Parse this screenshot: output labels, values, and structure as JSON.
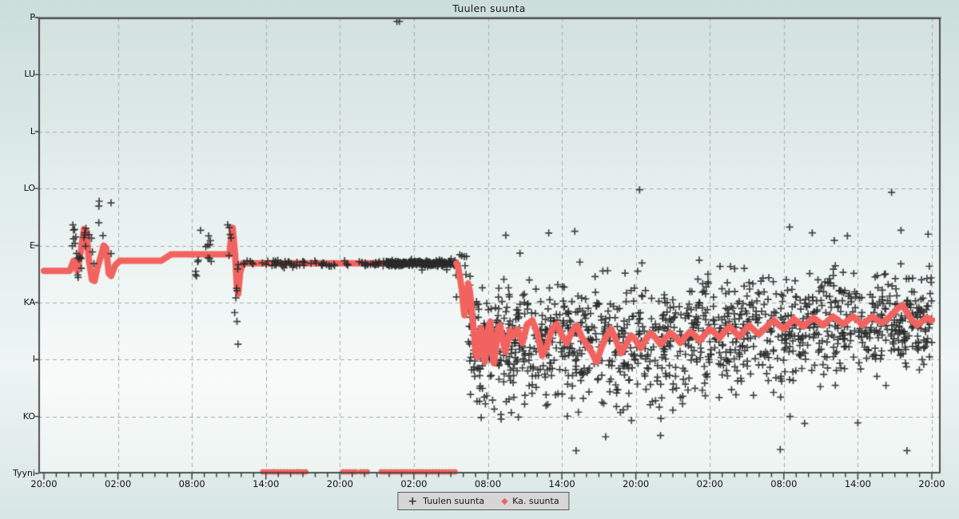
{
  "title": "Tuulen suunta",
  "colors": {
    "avg_line": "#f2635f",
    "scatter_marker": "#2e2e2e",
    "grid": "#a5aead",
    "border": "#4f4f4f",
    "legend_bg": "#d6d6d6",
    "text": "#111111"
  },
  "legend": {
    "items": [
      {
        "marker": "plus",
        "label": "Tuulen suunta"
      },
      {
        "marker": "diamond",
        "label": "Ka. suunta"
      }
    ]
  },
  "chart_data": {
    "type": "scatter",
    "title": "Tuulen suunta",
    "x_axis": {
      "unit": "time of day",
      "span_hours": 72,
      "major_tick_interval_hours": 6,
      "minor_tick_interval_hours": 1,
      "tick_labels": [
        "20:00",
        "02:00",
        "08:00",
        "14:00",
        "20:00",
        "02:00",
        "08:00",
        "14:00",
        "20:00",
        "02:00",
        "08:00",
        "14:00",
        "20:00"
      ]
    },
    "y_axis": {
      "unit": "wind direction (compass, degrees)",
      "tick_labels": [
        "P",
        "LU",
        "L",
        "LO",
        "E",
        "KA",
        "I",
        "KO",
        "Tyyni"
      ],
      "tick_degrees": [
        360,
        315,
        270,
        225,
        180,
        135,
        90,
        45,
        0
      ],
      "grid": true
    },
    "seed": 12,
    "series": [
      {
        "name": "Ka. suunta",
        "type": "line",
        "points": [
          [
            0,
            160
          ],
          [
            2.1,
            160
          ],
          [
            2.4,
            168
          ],
          [
            2.7,
            160
          ],
          [
            3.0,
            176
          ],
          [
            3.25,
            193
          ],
          [
            3.45,
            191
          ],
          [
            3.65,
            168
          ],
          [
            3.9,
            153
          ],
          [
            4.1,
            152
          ],
          [
            4.35,
            163
          ],
          [
            4.6,
            171
          ],
          [
            4.85,
            180
          ],
          [
            5.05,
            178
          ],
          [
            5.25,
            158
          ],
          [
            5.45,
            156
          ],
          [
            5.75,
            164
          ],
          [
            6.15,
            168
          ],
          [
            9.5,
            168
          ],
          [
            10.3,
            173
          ],
          [
            15.05,
            173
          ],
          [
            15.2,
            189
          ],
          [
            15.3,
            194
          ],
          [
            15.5,
            173
          ],
          [
            15.65,
            147
          ],
          [
            15.75,
            142
          ],
          [
            15.9,
            158
          ],
          [
            16.1,
            166
          ],
          [
            33.45,
            166
          ],
          [
            33.6,
            162
          ],
          [
            33.75,
            154
          ],
          [
            33.9,
            144
          ],
          [
            34.0,
            133
          ],
          [
            34.1,
            125
          ],
          [
            34.25,
            138
          ],
          [
            34.4,
            150
          ],
          [
            34.55,
            143
          ],
          [
            34.7,
            128
          ],
          [
            34.85,
            113
          ],
          [
            35.0,
            95
          ],
          [
            35.15,
            92
          ],
          [
            35.3,
            105
          ],
          [
            35.45,
            115
          ],
          [
            35.6,
            98
          ],
          [
            35.75,
            88
          ],
          [
            35.9,
            101
          ],
          [
            36.05,
            116
          ],
          [
            36.2,
            120
          ],
          [
            36.35,
            95
          ],
          [
            36.5,
            87
          ],
          [
            36.65,
            99
          ],
          [
            36.8,
            112
          ],
          [
            37.0,
            117
          ],
          [
            37.2,
            106
          ],
          [
            37.4,
            96
          ],
          [
            37.6,
            104
          ],
          [
            37.8,
            113
          ],
          [
            38.0,
            108
          ],
          [
            38.4,
            114
          ],
          [
            38.8,
            103
          ],
          [
            39.2,
            118
          ],
          [
            39.6,
            121
          ],
          [
            40.0,
            111
          ],
          [
            40.4,
            93
          ],
          [
            40.8,
            101
          ],
          [
            41.2,
            114
          ],
          [
            41.6,
            118
          ],
          [
            42.0,
            109
          ],
          [
            42.4,
            103
          ],
          [
            42.8,
            112
          ],
          [
            43.2,
            117
          ],
          [
            43.6,
            108
          ],
          [
            44.0,
            102
          ],
          [
            44.4,
            96
          ],
          [
            44.8,
            88
          ],
          [
            45.2,
            99
          ],
          [
            45.6,
            108
          ],
          [
            46.0,
            114
          ],
          [
            46.4,
            105
          ],
          [
            46.8,
            95
          ],
          [
            47.2,
            102
          ],
          [
            47.6,
            109
          ],
          [
            48.0,
            105
          ],
          [
            48.4,
            99
          ],
          [
            48.8,
            106
          ],
          [
            49.2,
            111
          ],
          [
            49.6,
            107
          ],
          [
            50.0,
            102
          ],
          [
            50.4,
            107
          ],
          [
            50.8,
            111
          ],
          [
            51.2,
            108
          ],
          [
            51.6,
            103
          ],
          [
            52.0,
            108
          ],
          [
            52.4,
            112
          ],
          [
            52.8,
            109
          ],
          [
            53.2,
            105
          ],
          [
            53.6,
            110
          ],
          [
            54.0,
            114
          ],
          [
            54.4,
            111
          ],
          [
            54.8,
            107
          ],
          [
            55.2,
            112
          ],
          [
            55.6,
            116
          ],
          [
            56.0,
            112
          ],
          [
            56.4,
            108
          ],
          [
            56.8,
            113
          ],
          [
            57.2,
            117
          ],
          [
            57.6,
            113
          ],
          [
            58.0,
            110
          ],
          [
            58.4,
            114
          ],
          [
            58.8,
            118
          ],
          [
            59.2,
            121
          ],
          [
            59.6,
            117
          ],
          [
            60.0,
            114
          ],
          [
            60.4,
            118
          ],
          [
            60.8,
            122
          ],
          [
            61.2,
            119
          ],
          [
            61.6,
            116
          ],
          [
            62.0,
            120
          ],
          [
            62.4,
            123
          ],
          [
            62.8,
            120
          ],
          [
            63.2,
            117
          ],
          [
            63.6,
            121
          ],
          [
            64.0,
            124
          ],
          [
            64.4,
            121
          ],
          [
            64.8,
            118
          ],
          [
            65.2,
            121
          ],
          [
            65.6,
            124
          ],
          [
            66.0,
            121
          ],
          [
            66.4,
            117
          ],
          [
            66.8,
            121
          ],
          [
            67.2,
            124
          ],
          [
            67.6,
            121
          ],
          [
            68.0,
            119
          ],
          [
            68.4,
            122
          ],
          [
            68.8,
            126
          ],
          [
            69.2,
            130
          ],
          [
            69.6,
            133
          ],
          [
            70.0,
            127
          ],
          [
            70.4,
            121
          ],
          [
            70.8,
            117
          ],
          [
            71.2,
            120
          ],
          [
            71.6,
            123
          ],
          [
            72.0,
            121
          ]
        ]
      },
      {
        "name": "Ka. suunta (tyyni)",
        "type": "calm-dots",
        "degrees": 0,
        "hour_ranges": [
          [
            17.75,
            18.55
          ],
          [
            18.7,
            20.55
          ],
          [
            20.7,
            21.45
          ],
          [
            24.25,
            25.5
          ],
          [
            25.7,
            26.45
          ],
          [
            27.35,
            33.5
          ]
        ]
      },
      {
        "name": "Tuulen suunta",
        "type": "scatter-plus",
        "regions": [
          {
            "hours": [
              2.3,
              5.6
            ],
            "count": 30,
            "mean_deg": 183,
            "spread_deg": 17,
            "clamp": [
              110,
              215
            ]
          },
          {
            "hours": [
              12.2,
              13.6
            ],
            "count": 14,
            "mean_deg": 172,
            "spread_deg": 12,
            "clamp": [
              120,
              200
            ]
          },
          {
            "hours": [
              14.9,
              15.4
            ],
            "count": 5,
            "mean_deg": 188,
            "spread_deg": 6,
            "clamp": [
              160,
              205
            ]
          },
          {
            "hours": [
              15.4,
              16.1
            ],
            "count": 8,
            "mean_deg": 125,
            "spread_deg": 22,
            "clamp": [
              75,
              165
            ]
          },
          {
            "hours": [
              16.1,
              27.8
            ],
            "count": 80,
            "mean_deg": 166,
            "spread_deg": 1.2,
            "clamp": [
              160,
              172
            ]
          },
          {
            "hours": [
              27.8,
              33.5
            ],
            "count": 260,
            "mean_deg": 166,
            "spread_deg": 1.0,
            "clamp": [
              160,
              172
            ]
          },
          {
            "hours": [
              33.2,
              34.6
            ],
            "count": 12,
            "mean_deg": 158,
            "spread_deg": 12,
            "clamp": [
              120,
              185
            ]
          },
          {
            "hours": [
              34.4,
              40.0
            ],
            "count": 240,
            "mean_deg": 104,
            "spread_deg": 21,
            "clamp": [
              18,
              228
            ]
          },
          {
            "hours": [
              40.0,
              52.0
            ],
            "count": 400,
            "mean_deg": 102,
            "spread_deg": 23,
            "clamp": [
              18,
              228
            ]
          },
          {
            "hours": [
              52.0,
              62.0
            ],
            "count": 340,
            "mean_deg": 110,
            "spread_deg": 21,
            "clamp": [
              18,
              228
            ]
          },
          {
            "hours": [
              62.0,
              72.0
            ],
            "count": 340,
            "mean_deg": 117,
            "spread_deg": 20,
            "clamp": [
              18,
              228
            ]
          }
        ],
        "extra_points": [
          [
            28.62,
            357
          ],
          [
            28.82,
            357
          ],
          [
            48.3,
            224
          ],
          [
            45.55,
            29
          ],
          [
            50.0,
            30
          ],
          [
            51.0,
            50
          ],
          [
            62.3,
            190
          ],
          [
            69.5,
            192
          ],
          [
            71.7,
            189
          ],
          [
            35.8,
            55
          ],
          [
            37.9,
            48
          ],
          [
            60.5,
            45
          ],
          [
            66.0,
            40
          ]
        ]
      }
    ]
  }
}
